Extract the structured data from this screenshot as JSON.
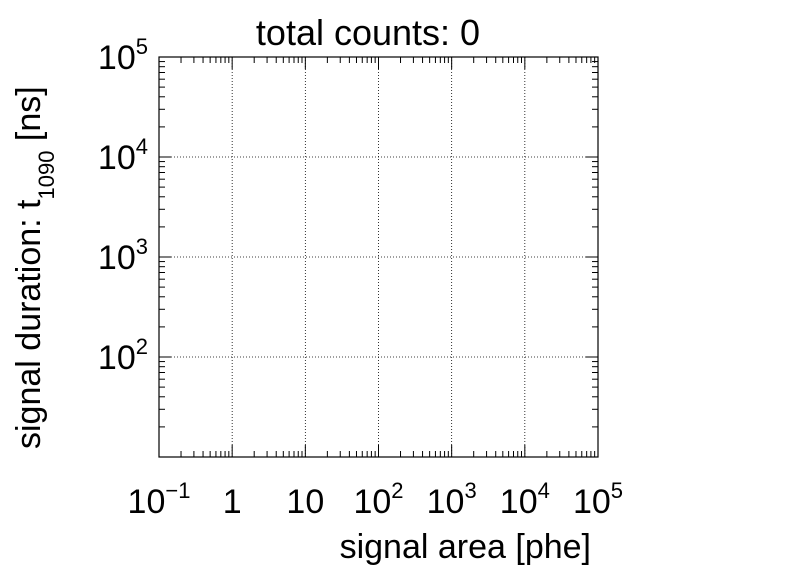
{
  "chart_data": {
    "type": "heatmap",
    "title": "total counts: 0",
    "xlabel": "signal area [phe]",
    "ylabel": {
      "prefix": "signal duration: t",
      "subscript": "1090",
      "suffix": " [ns]"
    },
    "x_scale": "log",
    "y_scale": "log",
    "xlim": [
      0.1,
      100000
    ],
    "ylim": [
      10,
      100000
    ],
    "grid": true,
    "total_counts": 0,
    "x_ticks": [
      {
        "value": 0.1,
        "base": "10",
        "exp": "−1"
      },
      {
        "value": 1,
        "base": "1",
        "exp": ""
      },
      {
        "value": 10,
        "base": "10",
        "exp": ""
      },
      {
        "value": 100,
        "base": "10",
        "exp": "2"
      },
      {
        "value": 1000,
        "base": "10",
        "exp": "3"
      },
      {
        "value": 10000,
        "base": "10",
        "exp": "4"
      },
      {
        "value": 100000,
        "base": "10",
        "exp": "5"
      }
    ],
    "y_ticks": [
      {
        "value": 100,
        "base": "10",
        "exp": "2"
      },
      {
        "value": 1000,
        "base": "10",
        "exp": "3"
      },
      {
        "value": 10000,
        "base": "10",
        "exp": "4"
      },
      {
        "value": 100000,
        "base": "10",
        "exp": "5"
      }
    ],
    "values": []
  }
}
